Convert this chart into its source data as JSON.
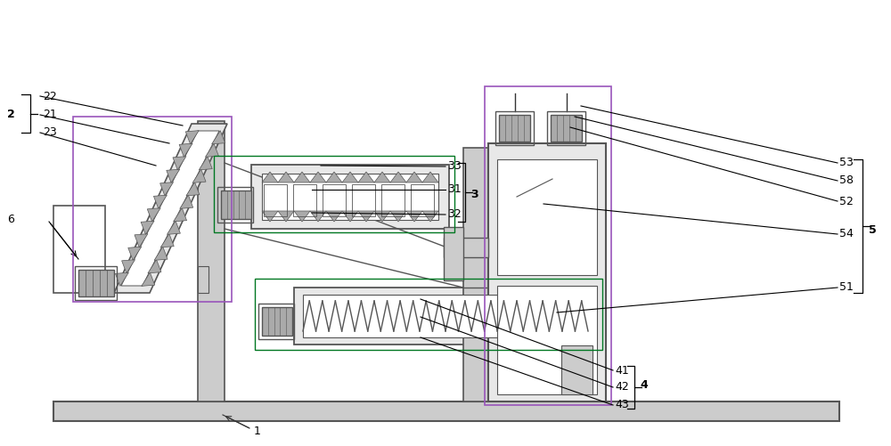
{
  "fig_width": 10.0,
  "fig_height": 5.01,
  "bg_color": "#ffffff",
  "lc": "#333333",
  "g1": "#555555",
  "g2": "#aaaaaa",
  "g3": "#cccccc",
  "g4": "#e8e8e8",
  "purple": "#9955bb",
  "green": "#007722"
}
